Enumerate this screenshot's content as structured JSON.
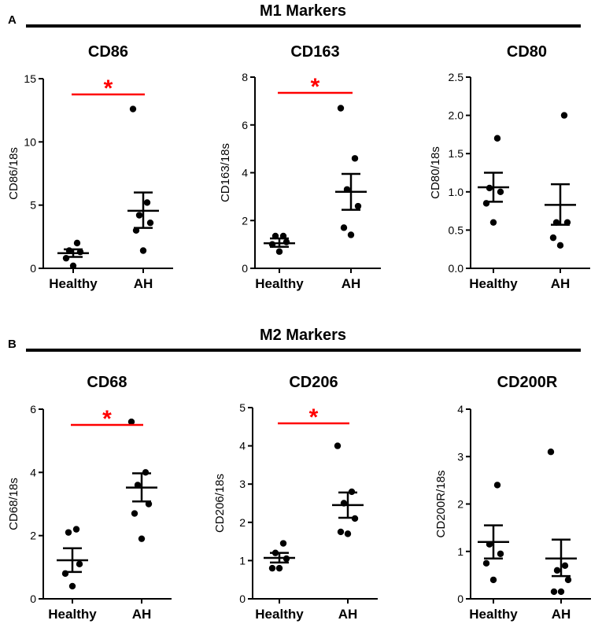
{
  "panels": [
    {
      "letter": "A",
      "title": "M1 Markers"
    },
    {
      "letter": "B",
      "title": "M2 Markers"
    }
  ],
  "colors": {
    "significance": "#ff0000",
    "points": "#000000",
    "axes": "#000000"
  },
  "chart_data": [
    {
      "type": "scatter",
      "panel": "A",
      "title": "CD86",
      "xlabel": "",
      "ylabel": "CD86/18s",
      "categories": [
        "Healthy",
        "AH"
      ],
      "ylim": [
        0,
        15
      ],
      "yticks": [
        "0",
        "5",
        "10",
        "15"
      ],
      "significance": {
        "label": "*",
        "between": [
          "Healthy",
          "AH"
        ]
      },
      "series": [
        {
          "name": "Healthy",
          "points": [
            0.2,
            0.8,
            1.3,
            1.4,
            2.0
          ],
          "mean": 1.2,
          "sem_low": 0.9,
          "sem_high": 1.5
        },
        {
          "name": "AH",
          "points": [
            1.4,
            3.0,
            3.6,
            4.2,
            5.2,
            12.6
          ],
          "mean": 4.55,
          "sem_low": 3.2,
          "sem_high": 6.0
        }
      ]
    },
    {
      "type": "scatter",
      "panel": "A",
      "title": "CD163",
      "xlabel": "",
      "ylabel": "CD163/18s",
      "categories": [
        "Healthy",
        "AH"
      ],
      "ylim": [
        0,
        8
      ],
      "yticks": [
        "0",
        "2",
        "4",
        "6",
        "8"
      ],
      "significance": {
        "label": "*",
        "between": [
          "Healthy",
          "AH"
        ]
      },
      "series": [
        {
          "name": "Healthy",
          "points": [
            0.7,
            1.0,
            1.1,
            1.35,
            1.35
          ],
          "mean": 1.05,
          "sem_low": 0.9,
          "sem_high": 1.25
        },
        {
          "name": "AH",
          "points": [
            1.4,
            1.7,
            2.6,
            3.3,
            4.6,
            6.7
          ],
          "mean": 3.2,
          "sem_low": 2.45,
          "sem_high": 3.95
        }
      ]
    },
    {
      "type": "scatter",
      "panel": "A",
      "title": "CD80",
      "xlabel": "",
      "ylabel": "CD80/18s",
      "categories": [
        "Healthy",
        "AH"
      ],
      "ylim": [
        0,
        2.5
      ],
      "yticks": [
        "0.0",
        "0.5",
        "1.0",
        "1.5",
        "2.0",
        "2.5"
      ],
      "significance": null,
      "series": [
        {
          "name": "Healthy",
          "points": [
            0.6,
            0.85,
            1.0,
            1.05,
            1.7
          ],
          "mean": 1.06,
          "sem_low": 0.87,
          "sem_high": 1.25
        },
        {
          "name": "AH",
          "points": [
            0.3,
            0.4,
            0.6,
            0.6,
            2.0
          ],
          "mean": 0.83,
          "sem_low": 0.57,
          "sem_high": 1.1
        }
      ]
    },
    {
      "type": "scatter",
      "panel": "B",
      "title": "CD68",
      "xlabel": "",
      "ylabel": "CD68/18s",
      "categories": [
        "Healthy",
        "AH"
      ],
      "ylim": [
        0,
        6
      ],
      "yticks": [
        "0",
        "2",
        "4",
        "6"
      ],
      "significance": {
        "label": "*",
        "between": [
          "Healthy",
          "AH"
        ]
      },
      "series": [
        {
          "name": "Healthy",
          "points": [
            0.4,
            0.8,
            1.1,
            2.1,
            2.2
          ],
          "mean": 1.22,
          "sem_low": 0.85,
          "sem_high": 1.6
        },
        {
          "name": "AH",
          "points": [
            1.9,
            2.7,
            3.0,
            3.6,
            4.0,
            5.6
          ],
          "mean": 3.52,
          "sem_low": 3.08,
          "sem_high": 3.97
        }
      ]
    },
    {
      "type": "scatter",
      "panel": "B",
      "title": "CD206",
      "xlabel": "",
      "ylabel": "CD206/18s",
      "categories": [
        "Healthy",
        "AH"
      ],
      "ylim": [
        0,
        5
      ],
      "yticks": [
        "0",
        "1",
        "2",
        "3",
        "4",
        "5"
      ],
      "significance": {
        "label": "*",
        "between": [
          "Healthy",
          "AH"
        ]
      },
      "series": [
        {
          "name": "Healthy",
          "points": [
            0.8,
            0.8,
            1.05,
            1.2,
            1.45
          ],
          "mean": 1.07,
          "sem_low": 0.95,
          "sem_high": 1.2
        },
        {
          "name": "AH",
          "points": [
            1.7,
            1.75,
            2.1,
            2.5,
            2.8,
            4.0
          ],
          "mean": 2.45,
          "sem_low": 2.12,
          "sem_high": 2.78
        }
      ]
    },
    {
      "type": "scatter",
      "panel": "B",
      "title": "CD200R",
      "xlabel": "",
      "ylabel": "CD200R/18s",
      "categories": [
        "Healthy",
        "AH"
      ],
      "ylim": [
        0,
        4
      ],
      "yticks": [
        "0",
        "1",
        "2",
        "3",
        "4"
      ],
      "significance": null,
      "series": [
        {
          "name": "Healthy",
          "points": [
            0.4,
            0.75,
            0.95,
            1.15,
            2.4
          ],
          "mean": 1.2,
          "sem_low": 0.85,
          "sem_high": 1.55
        },
        {
          "name": "AH",
          "points": [
            0.15,
            0.15,
            0.4,
            0.6,
            0.7,
            3.1
          ],
          "mean": 0.85,
          "sem_low": 0.48,
          "sem_high": 1.25
        }
      ]
    }
  ]
}
